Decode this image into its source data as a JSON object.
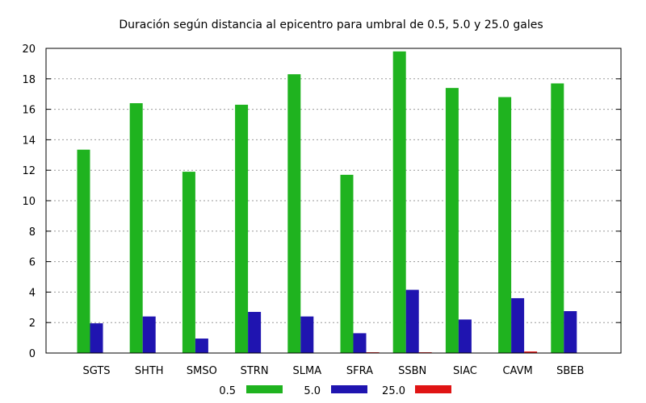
{
  "chart_data": {
    "type": "bar",
    "title": "Duración según distancia al epicentro para umbral de 0.5, 5.0 y 25.0 gales",
    "xlabel": "",
    "ylabel": "",
    "categories": [
      "SGTS",
      "SHTH",
      "SMSO",
      "STRN",
      "SLMA",
      "SFRA",
      "SSBN",
      "SIAC",
      "CAVM",
      "SBEB"
    ],
    "series": [
      {
        "name": "0.5",
        "color": "#1fb31f",
        "values": [
          13.35,
          16.4,
          11.9,
          16.3,
          18.3,
          11.7,
          19.8,
          17.4,
          16.8,
          17.7
        ]
      },
      {
        "name": "5.0",
        "color": "#1f14b0",
        "values": [
          1.95,
          2.4,
          0.95,
          2.7,
          2.4,
          1.3,
          4.15,
          2.2,
          3.6,
          2.75
        ]
      },
      {
        "name": "25.0",
        "color": "#e01414",
        "values": [
          0,
          0,
          0,
          0,
          0,
          0.05,
          0.05,
          0,
          0.1,
          0
        ]
      }
    ],
    "ylim": [
      0,
      20
    ],
    "yticks": [
      0,
      2,
      4,
      6,
      8,
      10,
      12,
      14,
      16,
      18,
      20
    ],
    "grid": true,
    "legend_position": "bottom"
  }
}
